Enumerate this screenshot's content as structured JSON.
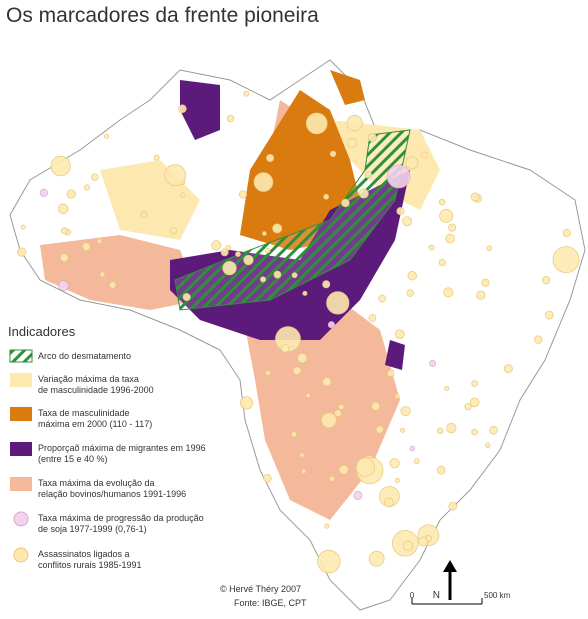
{
  "title": "Os marcadores da frente pioneira",
  "legend": {
    "title": "Indicadores",
    "items": [
      {
        "label": [
          "Arco do desmatamento"
        ]
      },
      {
        "label": [
          "Variação máxima da taxa",
          "de masculinidade 1996-2000"
        ]
      },
      {
        "label": [
          "Taxa de masculinidade",
          "máxima em 2000 (110 - 117)"
        ]
      },
      {
        "label": [
          "Proporçaõ máxima de migrantes em 1996",
          "(entre 15 e 40 %)"
        ]
      },
      {
        "label": [
          "Taxa máxima da evolução da",
          "relação bovinos/humanos 1991-1996"
        ]
      },
      {
        "label": [
          "Taxa máxima de progressão da produção",
          "de soja 1977-1999 (0,76-1)"
        ]
      },
      {
        "label": [
          "Assassinatos ligados a",
          "conflitos rurais 1985-1991"
        ]
      }
    ]
  },
  "credit": "© Hervé Théry 2007",
  "source": "Fonte: IBGE, CPT",
  "north": "N",
  "scale": {
    "start": "0",
    "end": "500 km"
  }
}
